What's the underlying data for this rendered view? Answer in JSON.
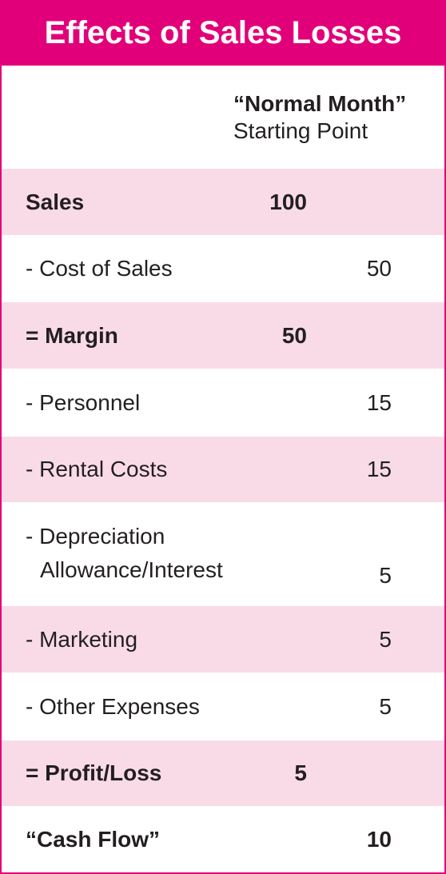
{
  "title": "Effects of Sales Losses",
  "header": {
    "line1": "“Normal Month”",
    "line2": "Starting Point"
  },
  "rows": [
    {
      "label": "Sales",
      "mid": "100",
      "right": ""
    },
    {
      "label": "- Cost of Sales",
      "mid": "",
      "right": "50"
    },
    {
      "label": "= Margin",
      "mid": "50",
      "right": ""
    },
    {
      "label": "- Personnel",
      "mid": "",
      "right": "15"
    },
    {
      "label": "- Rental Costs",
      "mid": "",
      "right": "15"
    },
    {
      "label_line1": "- Depreciation",
      "label_line2": "Allowance/Interest",
      "mid": "",
      "right": "5"
    },
    {
      "label": "- Marketing",
      "mid": "",
      "right": "5"
    },
    {
      "label": "- Other Expenses",
      "mid": "",
      "right": "5"
    },
    {
      "label": "= Profit/Loss",
      "mid": "5",
      "right": ""
    },
    {
      "label": "“Cash Flow”",
      "mid": "",
      "right": "10"
    }
  ],
  "colors": {
    "accent": "#e2007a",
    "shade": "#f9dbe8",
    "text": "#231f20"
  }
}
